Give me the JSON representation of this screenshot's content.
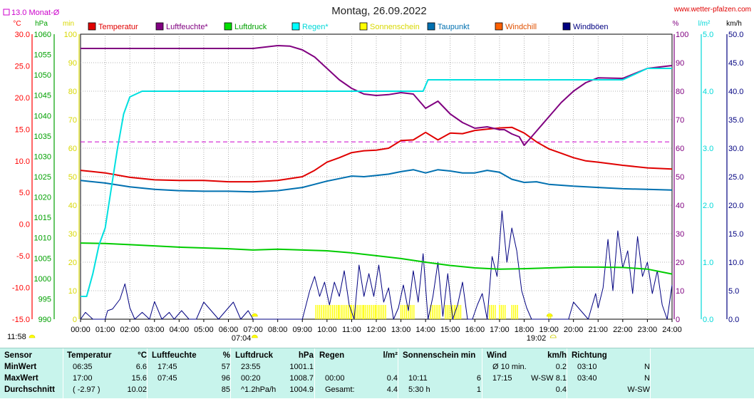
{
  "chart_data": {
    "type": "line",
    "title": "Montag, 26.09.2022",
    "source": "www.wetter-pfalzen.com",
    "monthly_avg_label": "13.0 Monat-Ø",
    "x_ticks": [
      "00:00",
      "01:00",
      "02:00",
      "03:00",
      "04:00",
      "05:00",
      "06:00",
      "07:00",
      "08:00",
      "09:00",
      "10:00",
      "11:00",
      "12:00",
      "13:00",
      "14:00",
      "15:00",
      "16:00",
      "17:00",
      "18:00",
      "19:00",
      "20:00",
      "21:00",
      "22:00",
      "23:00",
      "24:00"
    ],
    "sunrise": "07:04",
    "sunset": "19:02",
    "noon_marker": "11:58",
    "axes": {
      "temp": {
        "unit": "°C",
        "min": -15,
        "max": 30,
        "ticks": [
          "30.0",
          "25.0",
          "20.0",
          "15.0",
          "10.0",
          "5.0",
          "0.0",
          "-5.0",
          "-10.0",
          "-15.0"
        ],
        "color": "#ff0000"
      },
      "pressure": {
        "unit": "hPa",
        "min": 990,
        "max": 1060,
        "ticks": [
          "1060",
          "1055",
          "1050",
          "1045",
          "1040",
          "1035",
          "1030",
          "1025",
          "1020",
          "1015",
          "1010",
          "1005",
          "1000",
          "995",
          "990"
        ],
        "color": "#00a000"
      },
      "sun": {
        "unit": "min",
        "min": 0,
        "max": 100,
        "ticks": [
          "100",
          "90",
          "80",
          "70",
          "60",
          "50",
          "40",
          "30",
          "20",
          "10",
          "0"
        ],
        "color": "#d8d800"
      },
      "humidity": {
        "unit": "%",
        "min": 0,
        "max": 100,
        "ticks": [
          "100",
          "90",
          "80",
          "70",
          "60",
          "50",
          "40",
          "30",
          "20",
          "10",
          "0"
        ],
        "color": "#800080"
      },
      "rain": {
        "unit": "l/m²",
        "min": 0,
        "max": 5,
        "ticks": [
          "5.0",
          "4.0",
          "3.0",
          "2.0",
          "1.0",
          "0.0"
        ],
        "color": "#00d8d8"
      },
      "wind": {
        "unit": "km/h",
        "min": 0,
        "max": 50,
        "ticks": [
          "50.0",
          "45.0",
          "40.0",
          "35.0",
          "30.0",
          "25.0",
          "20.0",
          "15.0",
          "10.0",
          "5.0",
          "0.0"
        ],
        "color": "#000080"
      }
    },
    "monthly_avg_temp": 13.0,
    "series": [
      {
        "name": "Temperatur",
        "color": "#e00000",
        "axis": "temp",
        "x": [
          0,
          1,
          2,
          3,
          4,
          5,
          6,
          7,
          8,
          9,
          9.5,
          10,
          10.5,
          11,
          11.5,
          12,
          12.5,
          13,
          13.5,
          14,
          14.5,
          15,
          15.5,
          16,
          16.5,
          17,
          17.5,
          18,
          18.5,
          19,
          19.5,
          20,
          20.5,
          21,
          22,
          23,
          24
        ],
        "y": [
          8.5,
          8.1,
          7.4,
          7.0,
          6.9,
          6.9,
          6.7,
          6.7,
          6.9,
          7.5,
          8.5,
          9.8,
          10.5,
          11.3,
          11.6,
          11.7,
          12.0,
          13.2,
          13.3,
          14.5,
          13.3,
          14.4,
          14.3,
          14.8,
          15.0,
          15.2,
          15.3,
          14.4,
          13.0,
          11.9,
          11.2,
          10.5,
          10.0,
          9.8,
          9.3,
          8.9,
          8.7
        ]
      },
      {
        "name": "Luftfeuchte*",
        "color": "#800080",
        "axis": "humidity",
        "x": [
          0,
          1,
          2,
          3,
          4,
          5,
          6,
          7,
          7.5,
          8,
          8.5,
          9,
          9.5,
          10,
          10.5,
          11,
          11.5,
          12,
          12.5,
          13,
          13.5,
          14,
          14.5,
          15,
          15.5,
          16,
          16.5,
          17,
          17.2,
          17.5,
          17.8,
          18,
          18.5,
          19,
          19.5,
          20,
          20.5,
          21,
          22,
          23,
          24
        ],
        "y": [
          95,
          95,
          95,
          95,
          95,
          95,
          95,
          95,
          95.5,
          96,
          95.8,
          94.5,
          92,
          88,
          84,
          81,
          79,
          78.5,
          78.8,
          79.5,
          79,
          74,
          76.5,
          72,
          69,
          67,
          67.5,
          66.5,
          66.5,
          65,
          64,
          61,
          66,
          71,
          76,
          80,
          83,
          84.7,
          84.5,
          88,
          89
        ]
      },
      {
        "name": "Taupunkt",
        "color": "#0070b0",
        "axis": "temp",
        "x": [
          0,
          1,
          2,
          3,
          4,
          5,
          6,
          7,
          8,
          9,
          9.5,
          10,
          10.5,
          11,
          11.5,
          12,
          12.5,
          13,
          13.5,
          14,
          14.5,
          15,
          15.5,
          16,
          16.5,
          17,
          17.5,
          18,
          18.5,
          19,
          20,
          21,
          22,
          23,
          24
        ],
        "y": [
          6.9,
          6.5,
          5.9,
          5.5,
          5.3,
          5.2,
          5.2,
          5.1,
          5.3,
          5.8,
          6.3,
          6.8,
          7.2,
          7.6,
          7.5,
          7.7,
          7.9,
          8.3,
          8.6,
          8.1,
          8.6,
          8.4,
          8.1,
          8.1,
          8.5,
          8.2,
          7.1,
          6.6,
          6.7,
          6.3,
          6.0,
          5.8,
          5.6,
          5.5,
          5.4
        ]
      },
      {
        "name": "Luftdruck",
        "color": "#00cc00",
        "axis": "pressure",
        "x": [
          0,
          1,
          2,
          3,
          4,
          5,
          6,
          7,
          8,
          9,
          10,
          11,
          12,
          13,
          14,
          15,
          16,
          17,
          18,
          19,
          20,
          21,
          22,
          23,
          24
        ],
        "y": [
          1008.7,
          1008.6,
          1008.3,
          1008.0,
          1007.7,
          1007.5,
          1007.3,
          1007.0,
          1007.2,
          1007.0,
          1006.8,
          1006.3,
          1005.6,
          1004.9,
          1004.0,
          1003.2,
          1002.6,
          1002.3,
          1002.4,
          1002.6,
          1002.8,
          1002.8,
          1002.7,
          1002.3,
          1001.1
        ]
      },
      {
        "name": "Regen*",
        "color": "#00e0e0",
        "axis": "rain",
        "x": [
          0,
          0.25,
          0.5,
          0.75,
          1,
          1.25,
          1.5,
          1.75,
          2,
          2.5,
          3,
          5,
          10,
          12,
          13.5,
          13.9,
          14.1,
          14.5,
          20,
          22,
          23,
          24
        ],
        "y": [
          0.4,
          0.4,
          0.8,
          1.3,
          1.6,
          2.3,
          3.0,
          3.6,
          3.9,
          4.0,
          4.0,
          4.0,
          4.0,
          4.0,
          4.0,
          4.0,
          4.2,
          4.2,
          4.2,
          4.2,
          4.4,
          4.4
        ]
      },
      {
        "name": "Windböen",
        "color": "#000080",
        "axis": "wind",
        "x": [
          0,
          0.2,
          0.5,
          1,
          1.1,
          1.3,
          1.6,
          1.8,
          2.0,
          2.2,
          2.5,
          2.8,
          3.0,
          3.3,
          3.6,
          3.8,
          4.1,
          4.4,
          4.7,
          5.0,
          5.3,
          5.6,
          5.9,
          6.2,
          6.5,
          6.8,
          7.0,
          7.3,
          7.6,
          8.0,
          8.5,
          9.0,
          9.3,
          9.5,
          9.7,
          9.9,
          10.1,
          10.3,
          10.5,
          10.7,
          10.9,
          11.1,
          11.3,
          11.5,
          11.7,
          11.9,
          12.1,
          12.3,
          12.5,
          12.7,
          12.9,
          13.1,
          13.3,
          13.5,
          13.7,
          13.9,
          14.1,
          14.3,
          14.5,
          14.7,
          14.9,
          15.1,
          15.3,
          15.5,
          15.7,
          15.9,
          16.1,
          16.3,
          16.5,
          16.7,
          16.9,
          17.1,
          17.3,
          17.5,
          17.7,
          17.9,
          18.1,
          18.3,
          18.6,
          19.0,
          19.5,
          19.8,
          20.0,
          20.3,
          20.6,
          20.9,
          21.0,
          21.2,
          21.4,
          21.6,
          21.8,
          22.0,
          22.2,
          22.4,
          22.6,
          22.8,
          23.0,
          23.2,
          23.4,
          23.6,
          23.8,
          24.0
        ],
        "y": [
          0,
          1.2,
          0,
          0,
          1.5,
          1.8,
          3.5,
          6.2,
          2.0,
          0,
          1.2,
          0,
          3.1,
          0,
          1.2,
          0,
          1.5,
          0,
          0,
          3.0,
          1.5,
          0,
          1.5,
          3.0,
          0,
          1.5,
          0,
          0,
          0,
          0,
          0,
          0,
          5.0,
          7.5,
          4.0,
          6.5,
          2.5,
          6.5,
          4.0,
          8.5,
          2.5,
          0,
          9.5,
          4.0,
          8.0,
          4.0,
          9.5,
          3.0,
          5.5,
          0,
          2.0,
          6.0,
          1.5,
          8.5,
          3.0,
          11.5,
          0,
          4.0,
          10.0,
          0.5,
          8.0,
          0,
          2.5,
          6.5,
          0,
          0,
          2.5,
          4.5,
          0,
          11.0,
          7.5,
          19.0,
          10.0,
          16.0,
          12.0,
          5.0,
          2.0,
          0,
          0,
          0,
          0,
          0,
          3.0,
          1.5,
          0,
          4.5,
          2.0,
          5.5,
          14.0,
          5.0,
          15.5,
          9.0,
          12.0,
          4.5,
          14.5,
          7.5,
          10.0,
          4.5,
          8.5,
          2.5,
          0,
          6.0
        ]
      },
      {
        "name": "Sonnenschein",
        "color": "#ffff00",
        "axis": "sun",
        "bars": [
          [
            9.55,
            10.0,
            5
          ],
          [
            10.0,
            10.5,
            5
          ],
          [
            10.5,
            11.0,
            5
          ],
          [
            11.0,
            11.5,
            5
          ],
          [
            11.5,
            12.0,
            5
          ],
          [
            12.0,
            12.4,
            5
          ],
          [
            13.0,
            13.6,
            5
          ],
          [
            14.2,
            14.6,
            5
          ],
          [
            14.8,
            15.2,
            5
          ],
          [
            15.2,
            15.5,
            5
          ],
          [
            16.6,
            16.9,
            5
          ],
          [
            17.0,
            17.3,
            5
          ],
          [
            17.5,
            17.8,
            5
          ],
          [
            19.0,
            19.1,
            1
          ]
        ]
      },
      {
        "name": "Windchill",
        "color": "#ff6000",
        "axis": "temp",
        "y": []
      },
      {
        "name": "Wind",
        "color": "#000080",
        "axis": "wind",
        "y": []
      }
    ],
    "legend": [
      {
        "label": "Temperatur",
        "color": "#e00000",
        "text_color": "#e00000"
      },
      {
        "label": "Luftfeuchte*",
        "color": "#800080",
        "text_color": "#800080"
      },
      {
        "label": "Luftdruck",
        "color": "#00e000",
        "text_color": "#00a000"
      },
      {
        "label": "Regen*",
        "color": "#00ffff",
        "text_color": "#00d8d8"
      },
      {
        "label": "Sonnenschein",
        "color": "#ffff00",
        "text_color": "#d8d800"
      },
      {
        "label": "Taupunkt",
        "color": "#0070b0",
        "text_color": "#0070b0"
      },
      {
        "label": "Windchill",
        "color": "#ff6000",
        "text_color": "#e05000"
      },
      {
        "label": "Windböen",
        "color": "#000080",
        "text_color": "#000080"
      }
    ],
    "grid": true
  },
  "stats": {
    "sections": [
      {
        "title": "Sensor",
        "rows": [
          "MinWert",
          "MaxWert",
          "Durchschnitt"
        ]
      },
      {
        "title": "Temperatur",
        "unit": "°C",
        "rows": [
          [
            "06:35",
            "6.6"
          ],
          [
            "17:00",
            "15.6"
          ],
          [
            "( -2.97 )",
            "10.02"
          ]
        ]
      },
      {
        "title": "Luftfeuchte",
        "unit": "%",
        "rows": [
          [
            "17:45",
            "57"
          ],
          [
            "07:45",
            "96"
          ],
          [
            "",
            "85"
          ]
        ]
      },
      {
        "title": "Luftdruck",
        "unit": "hPa",
        "rows": [
          [
            "23:55",
            "1001.1"
          ],
          [
            "00:20",
            "1008.7"
          ],
          [
            "^1.2hPa/h",
            "1004.9"
          ]
        ]
      },
      {
        "title": "Regen",
        "unit": "l/m²",
        "rows": [
          [
            "",
            ""
          ],
          [
            "00:00",
            "0.4"
          ],
          [
            "Gesamt:",
            "4.4"
          ]
        ]
      },
      {
        "title": "Sonnenschein min",
        "unit": "",
        "rows": [
          [
            "",
            ""
          ],
          [
            "10:11",
            "6"
          ],
          [
            "5:30 h",
            "1"
          ]
        ]
      },
      {
        "title": "Wind",
        "unit": "km/h",
        "rows": [
          [
            "Ø 10 min.",
            "0.2"
          ],
          [
            "17:15",
            "W-SW 8.1"
          ],
          [
            "",
            "0.4"
          ]
        ]
      },
      {
        "title": "Richtung",
        "unit": "",
        "rows": [
          [
            "03:10",
            "N"
          ],
          [
            "03:40",
            "N"
          ],
          [
            "",
            "W-SW"
          ]
        ]
      }
    ]
  }
}
